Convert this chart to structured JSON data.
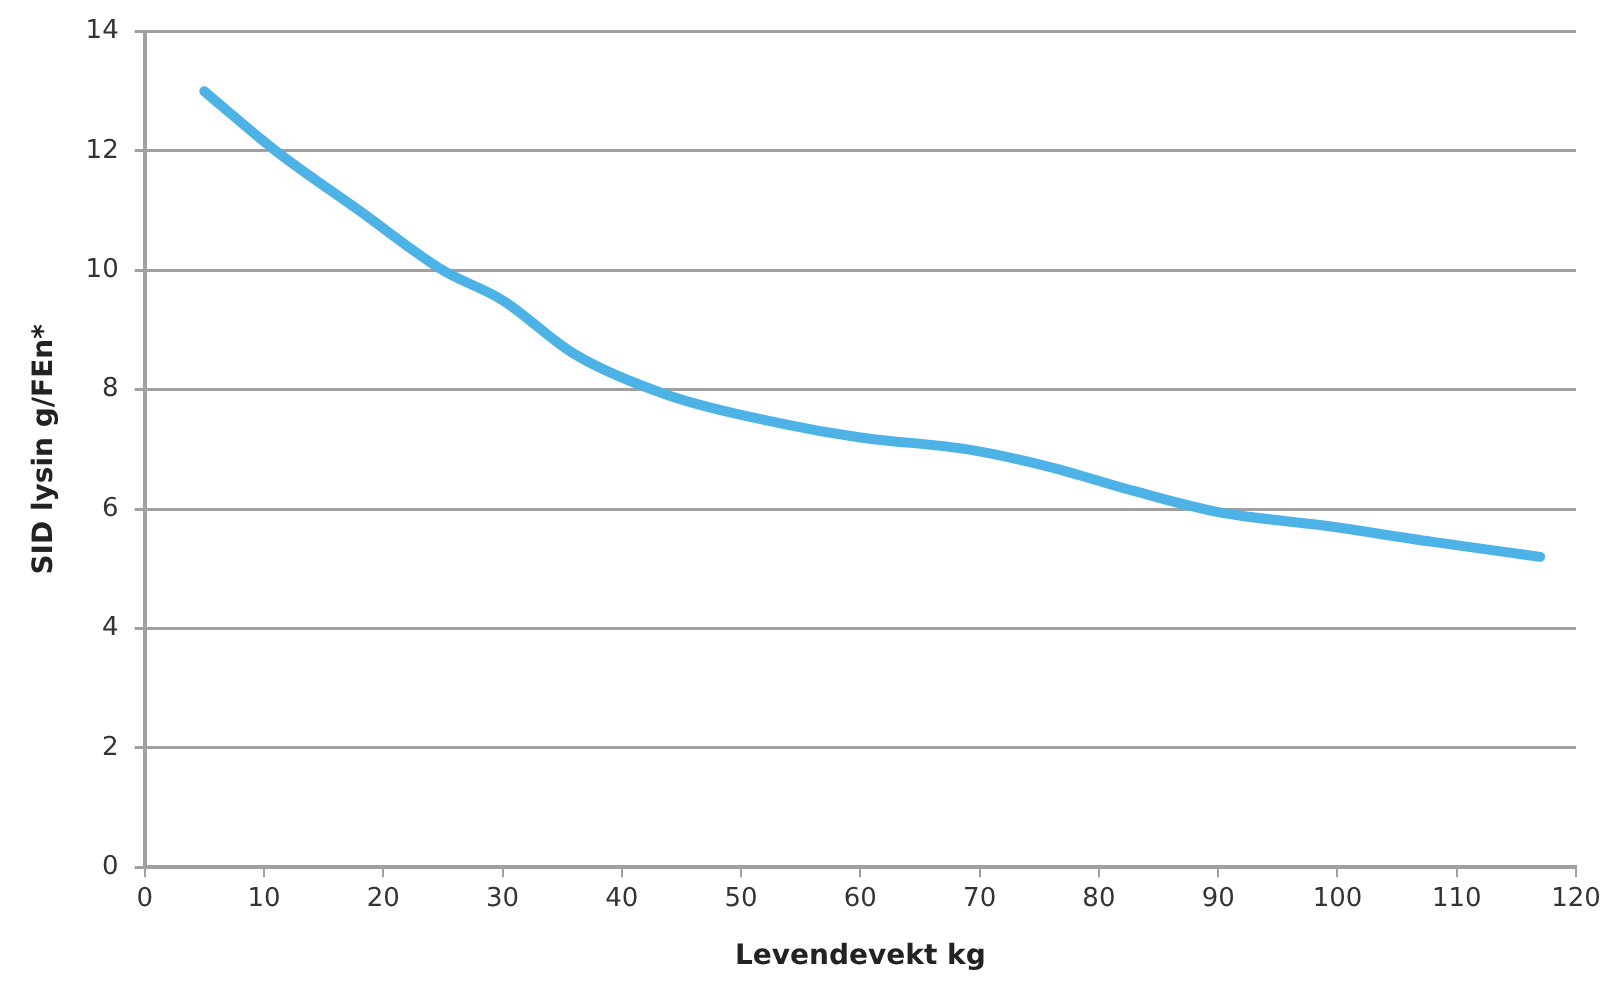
{
  "chart_data": {
    "type": "line",
    "xlabel": "Levendevekt kg",
    "ylabel": "SID lysin g/FEn*",
    "series": [
      {
        "color": "#4db3e6",
        "x": [
          5,
          11,
          18,
          25,
          30,
          36,
          44,
          53,
          60,
          69,
          76,
          83,
          90,
          99,
          108,
          117
        ],
        "values": [
          13,
          12,
          11,
          10,
          9.5,
          8.6,
          7.9,
          7.45,
          7.2,
          7.0,
          6.7,
          6.3,
          5.95,
          5.72,
          5.45,
          5.2
        ]
      }
    ],
    "xlim": [
      0,
      120
    ],
    "xticks": [
      0,
      10,
      20,
      30,
      40,
      50,
      60,
      70,
      80,
      90,
      100,
      110,
      120
    ],
    "ylim": [
      0,
      14
    ],
    "yticks": [
      0,
      2,
      4,
      6,
      8,
      10,
      12,
      14
    ],
    "grid": "y",
    "legend": false,
    "marker": "none",
    "line_style": "solid"
  }
}
